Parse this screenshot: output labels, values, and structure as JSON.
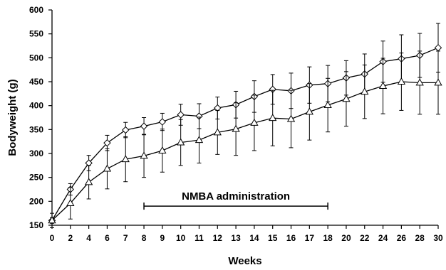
{
  "chart_data": {
    "type": "line",
    "title": "",
    "xlabel": "Weeks",
    "ylabel": "Bodyweight (g)",
    "ylim": [
      150,
      600
    ],
    "y_ticks": [
      150,
      200,
      250,
      300,
      350,
      400,
      450,
      500,
      550,
      600
    ],
    "categories": [
      "0",
      "2",
      "4",
      "6",
      "7",
      "8",
      "9",
      "10",
      "11",
      "12",
      "13",
      "14",
      "15",
      "16",
      "17",
      "18",
      "20",
      "22",
      "24",
      "26",
      "28",
      "30"
    ],
    "grid": false,
    "series": [
      {
        "marker": "diamond",
        "values": [
          160,
          225,
          280,
          322,
          349,
          357,
          366,
          381,
          378,
          395,
          402,
          419,
          434,
          431,
          443,
          446,
          458,
          466,
          492,
          498,
          505,
          521
        ],
        "errors": [
          6,
          12,
          16,
          16,
          16,
          18,
          18,
          22,
          26,
          23,
          28,
          33,
          31,
          37,
          38,
          38,
          36,
          42,
          43,
          50,
          46,
          51
        ]
      },
      {
        "marker": "triangle",
        "values": [
          160,
          196,
          240,
          268,
          288,
          295,
          306,
          323,
          328,
          344,
          351,
          364,
          374,
          372,
          387,
          401,
          414,
          429,
          441,
          450,
          448,
          448
        ],
        "errors": [
          15,
          33,
          35,
          42,
          47,
          45,
          45,
          48,
          48,
          46,
          55,
          58,
          58,
          60,
          59,
          56,
          57,
          56,
          58,
          60,
          66,
          66
        ]
      }
    ],
    "annotations": [
      {
        "text": "NMBA administration",
        "x_start": "8",
        "x_end": "18",
        "y": 190
      }
    ],
    "colors": {
      "line": "#000000",
      "marker_fill": "#ffffff"
    }
  }
}
